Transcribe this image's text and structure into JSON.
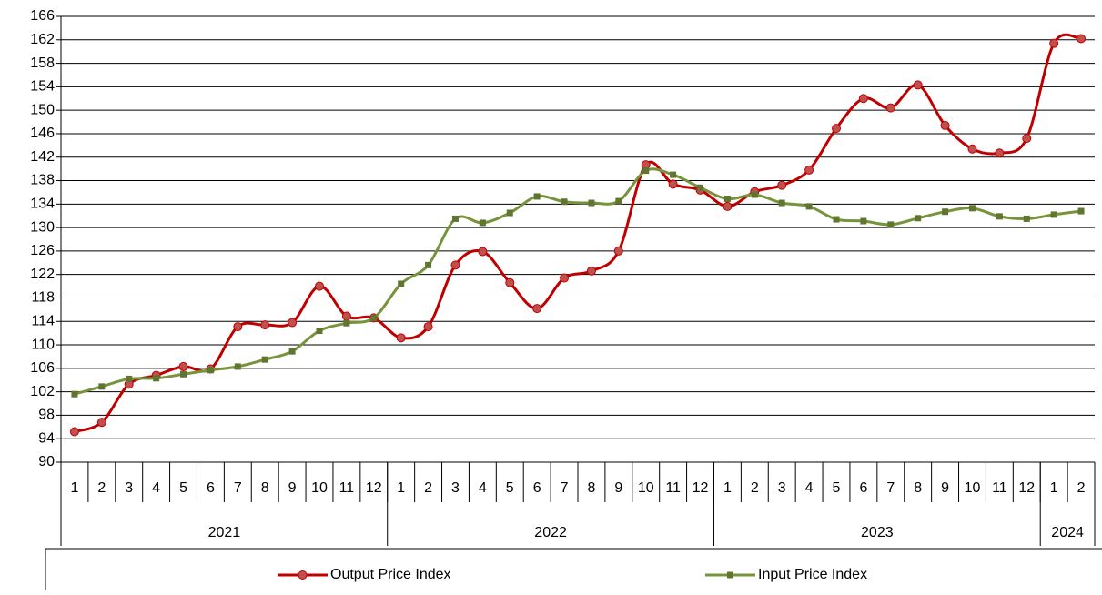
{
  "chart_data": {
    "type": "line",
    "categories": [
      "1",
      "2",
      "3",
      "4",
      "5",
      "6",
      "7",
      "8",
      "9",
      "10",
      "11",
      "12",
      "1",
      "2",
      "3",
      "4",
      "5",
      "6",
      "7",
      "8",
      "9",
      "10",
      "11",
      "12",
      "1",
      "2",
      "3",
      "4",
      "5",
      "6",
      "7",
      "8",
      "9",
      "10",
      "11",
      "12",
      "1",
      "2"
    ],
    "category_groups": [
      "2021",
      "2022",
      "2023",
      "2024"
    ],
    "series": [
      {
        "name": "Output Price Index",
        "color": "#c00000",
        "marker_color": "#c0504d",
        "marker": "circle",
        "values": [
          95.2,
          96.8,
          103.3,
          104.8,
          106.3,
          105.9,
          113.1,
          113.4,
          113.8,
          120.0,
          114.9,
          114.6,
          111.2,
          113.1,
          123.6,
          125.9,
          120.6,
          116.2,
          121.4,
          122.6,
          126.0,
          140.7,
          137.4,
          136.4,
          133.6,
          136.1,
          137.2,
          139.8,
          146.9,
          152.0,
          150.4,
          154.3,
          147.4,
          143.4,
          142.7,
          145.2,
          161.4,
          162.2
        ]
      },
      {
        "name": "Input Price Index",
        "color": "#77933c",
        "marker_color": "#5f7530",
        "marker": "square",
        "values": [
          101.6,
          102.9,
          104.2,
          104.3,
          105.0,
          105.7,
          106.3,
          107.5,
          108.9,
          112.4,
          113.7,
          114.6,
          120.4,
          123.6,
          131.5,
          130.8,
          132.5,
          135.3,
          134.4,
          134.2,
          134.5,
          139.7,
          139.0,
          136.8,
          134.9,
          135.6,
          134.2,
          133.6,
          131.4,
          131.1,
          130.5,
          131.6,
          132.7,
          133.3,
          131.9,
          131.5,
          132.2,
          132.8
        ]
      }
    ],
    "ylim": [
      90,
      166
    ],
    "yticks": [
      90,
      94,
      98,
      102,
      106,
      110,
      114,
      118,
      122,
      126,
      130,
      134,
      138,
      142,
      146,
      150,
      154,
      158,
      162,
      166
    ],
    "grid": true,
    "smooth": true,
    "legend": "bottom"
  }
}
